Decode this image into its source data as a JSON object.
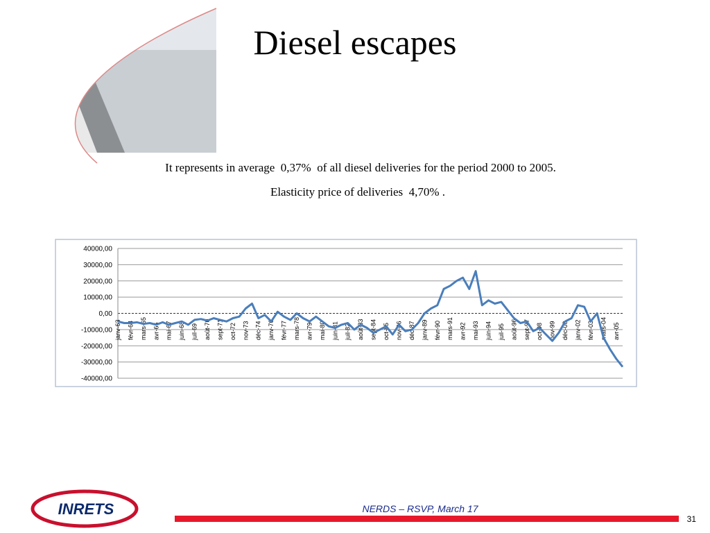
{
  "slide": {
    "title": "Diesel escapes",
    "line1": "It represents in average  0,37%  of all diesel deliveries for the period 2000 to 2005.",
    "line2": "Elasticity price of deliveries  4,70% .",
    "logo": "INRETS",
    "footer": "NERDS – RSVP, March 17",
    "page": "31"
  },
  "chart_data": {
    "type": "line",
    "color": "#4a7ebb",
    "grid": true,
    "ylim": [
      -40000,
      40000
    ],
    "yticks": [
      {
        "value": -40000,
        "label": "-40000,00"
      },
      {
        "value": -30000,
        "label": "-30000,00"
      },
      {
        "value": -20000,
        "label": "-20000,00"
      },
      {
        "value": -10000,
        "label": "-10000,00"
      },
      {
        "value": 0,
        "label": "0,00"
      },
      {
        "value": 10000,
        "label": "10000,00"
      },
      {
        "value": 20000,
        "label": "20000,00"
      },
      {
        "value": 30000,
        "label": "30000,00"
      },
      {
        "value": 40000,
        "label": "40000,00"
      }
    ],
    "categories": [
      "janv-63",
      null,
      "févr-64",
      null,
      "mars-65",
      null,
      "avr-66",
      null,
      "mai-67",
      null,
      "juin-68",
      null,
      "juil-69",
      null,
      "août-70",
      null,
      "sept-71",
      null,
      "oct-72",
      null,
      "nov-73",
      null,
      "déc-74",
      null,
      "janv-76",
      null,
      "févr-77",
      null,
      "mars-78",
      null,
      "avr-79",
      null,
      "mai-80",
      null,
      "juin-81",
      null,
      "juil-82",
      null,
      "août-83",
      null,
      "sept-84",
      null,
      "oct-85",
      null,
      "nov-86",
      null,
      "déc-87",
      null,
      "janv-89",
      null,
      "févr-90",
      null,
      "mars-91",
      null,
      "avr-92",
      null,
      "mai-93",
      null,
      "juin-94",
      null,
      "juil-95",
      null,
      "août-96",
      null,
      "sept-97",
      null,
      "oct-98",
      null,
      "nov-99",
      null,
      "déc-00",
      null,
      "janv-02",
      null,
      "févr-03",
      null,
      "mars-04",
      null,
      "avr-05",
      null
    ],
    "values": [
      -5000,
      -6000,
      -6000,
      -5500,
      -6500,
      -6000,
      -7000,
      -5500,
      -7000,
      -6000,
      -5000,
      -7000,
      -4000,
      -3500,
      -4500,
      -3000,
      -4000,
      -5000,
      -3000,
      -2000,
      3000,
      6000,
      -3000,
      -1000,
      -5000,
      1000,
      -2000,
      -4000,
      0,
      -3000,
      -5000,
      -2000,
      -5000,
      -8000,
      -9000,
      -7000,
      -6000,
      -10000,
      -7000,
      -9000,
      -12000,
      -10000,
      -8000,
      -13000,
      -7000,
      -11000,
      -10000,
      -6000,
      0,
      3000,
      5000,
      15000,
      17000,
      20000,
      22000,
      15000,
      26000,
      5000,
      8000,
      6000,
      7000,
      2000,
      -3000,
      -6000,
      -5000,
      -11000,
      -9000,
      -13000,
      -17000,
      -12000,
      -5000,
      -3000,
      5000,
      4000,
      -5000,
      0,
      -15000,
      -22000,
      -28000,
      -33000
    ]
  }
}
